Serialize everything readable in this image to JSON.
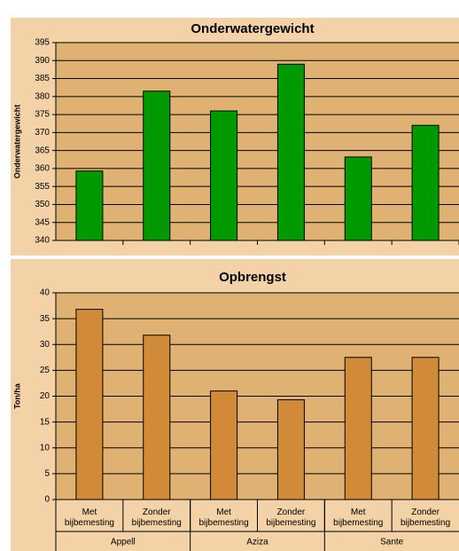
{
  "chart_data": [
    {
      "type": "bar",
      "title": "Onderwatergewicht",
      "ylabel": "Onderwatergewicht",
      "values": [
        359.3,
        381.5,
        376,
        389,
        363.2,
        372
      ],
      "color": "#009900",
      "ylim": [
        340,
        395
      ],
      "yticks": [
        340,
        345,
        350,
        355,
        360,
        365,
        370,
        375,
        380,
        385,
        390,
        395
      ],
      "grid": true
    },
    {
      "type": "bar",
      "title": "Opbrengst",
      "ylabel": "Ton/ha",
      "categories": [
        "Met bijbemesting",
        "Zonder bijbemesting",
        "Met bijbemesting",
        "Zonder bijbemesting",
        "Met bijbemesting",
        "Zonder bijbemesting"
      ],
      "groups": [
        "Appell",
        "Aziza",
        "Sante"
      ],
      "values": [
        36.8,
        31.8,
        21,
        19.3,
        27.5,
        27.5
      ],
      "color": "#D08A38",
      "ylim": [
        0,
        40
      ],
      "yticks": [
        0,
        5,
        10,
        15,
        20,
        25,
        30,
        35,
        40
      ],
      "grid": true
    }
  ]
}
